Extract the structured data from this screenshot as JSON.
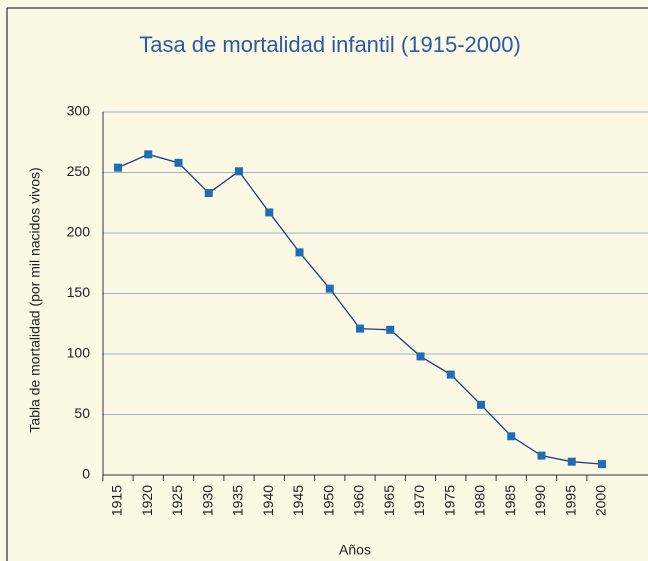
{
  "chart_data": {
    "type": "line",
    "title": "Tasa de mortalidad infantil (1915-2000)",
    "x_label": "Años",
    "y_label": "Tabla de mortalidad (por mil nacidos vivos)",
    "categories": [
      "1915",
      "1920",
      "1925",
      "1930",
      "1935",
      "1940",
      "1945",
      "1950",
      "1960",
      "1965",
      "1970",
      "1975",
      "1980",
      "1985",
      "1990",
      "1995",
      "2000"
    ],
    "series": [
      {
        "color": "#1b3d8a",
        "values": [
          254,
          265,
          258,
          233,
          251,
          217,
          184,
          154,
          121,
          120,
          98,
          83,
          58,
          32,
          16,
          11,
          9
        ]
      }
    ],
    "ylim": [
      0,
      300
    ],
    "yticks": [
      0,
      50,
      100,
      150,
      200,
      250,
      300
    ],
    "grid": true
  }
}
